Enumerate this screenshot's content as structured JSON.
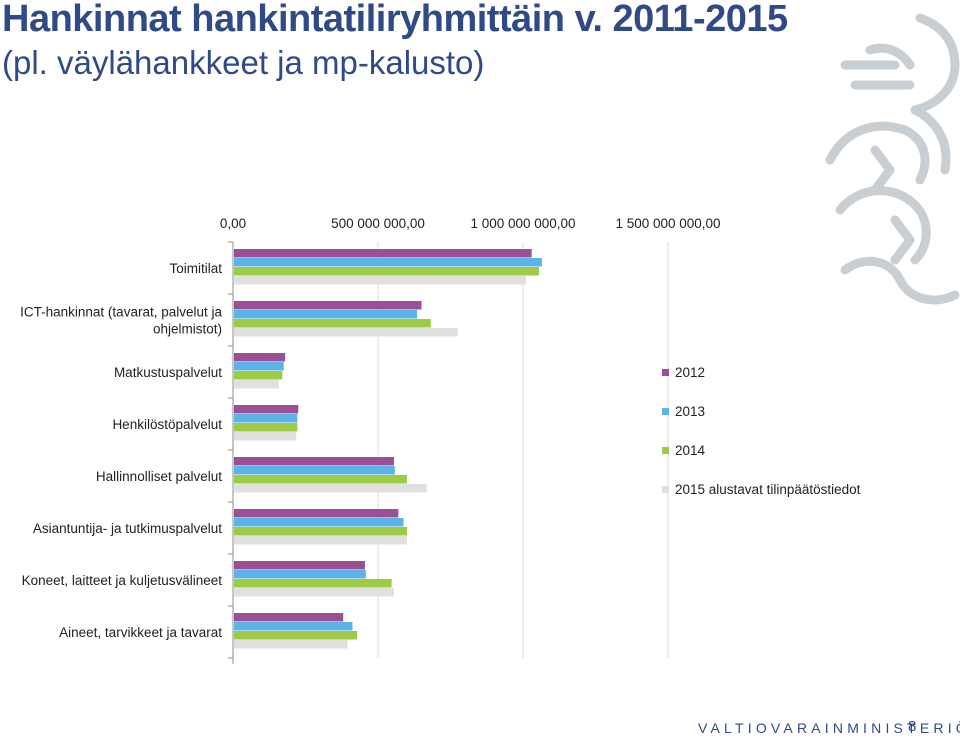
{
  "header": {
    "title": "Hankinnat hankintatiliryhmittäin v. 2011-2015",
    "subtitle": "(pl. väylähankkeet ja mp-kalusto)"
  },
  "footer": {
    "ministry": "VALTIOVARAINMINISTERIÖ",
    "page": "8"
  },
  "logo": {
    "icon": "finnish-lion-icon",
    "color": "#c9ced3"
  },
  "chart_data": {
    "type": "bar",
    "orientation": "horizontal",
    "title": "",
    "xlabel": "",
    "ylabel": "",
    "xlim": [
      0,
      2000000000
    ],
    "ticks": [
      0,
      500000000,
      1000000000,
      1500000000
    ],
    "tick_labels": [
      "0,00",
      "500 000 000,00",
      "1 000 000 000,00",
      "1 500 000 000,00"
    ],
    "grid": true,
    "legend_position": "right",
    "categories": [
      [
        "Toimitilat"
      ],
      [
        "ICT-hankinnat (tavarat, palvelut ja",
        "ohjelmistot)"
      ],
      [
        "Matkustuspalvelut"
      ],
      [
        "Henkilöstöpalvelut"
      ],
      [
        "Hallinnolliset palvelut"
      ],
      [
        "Asiantuntija- ja tutkimuspalvelut"
      ],
      [
        "Koneet, laitteet ja kuljetusvälineet"
      ],
      [
        "Aineet, tarvikkeet ja tavarat"
      ]
    ],
    "series": [
      {
        "name": "2012",
        "color": "#9b4f96",
        "values": [
          1030000000,
          650000000,
          180000000,
          225000000,
          555000000,
          570000000,
          455000000,
          380000000
        ]
      },
      {
        "name": "2013",
        "color": "#5ab4e5",
        "values": [
          1065000000,
          635000000,
          175000000,
          222000000,
          558000000,
          588000000,
          458000000,
          412000000
        ]
      },
      {
        "name": "2014",
        "color": "#9dcb45",
        "values": [
          1055000000,
          682000000,
          170000000,
          222000000,
          600000000,
          600000000,
          547000000,
          428000000
        ]
      },
      {
        "name": "2015 alustavat tilinpäätöstiedot",
        "color": "#e0e0e0",
        "values": [
          1010000000,
          775000000,
          158000000,
          218000000,
          668000000,
          600000000,
          555000000,
          395000000
        ]
      }
    ]
  }
}
